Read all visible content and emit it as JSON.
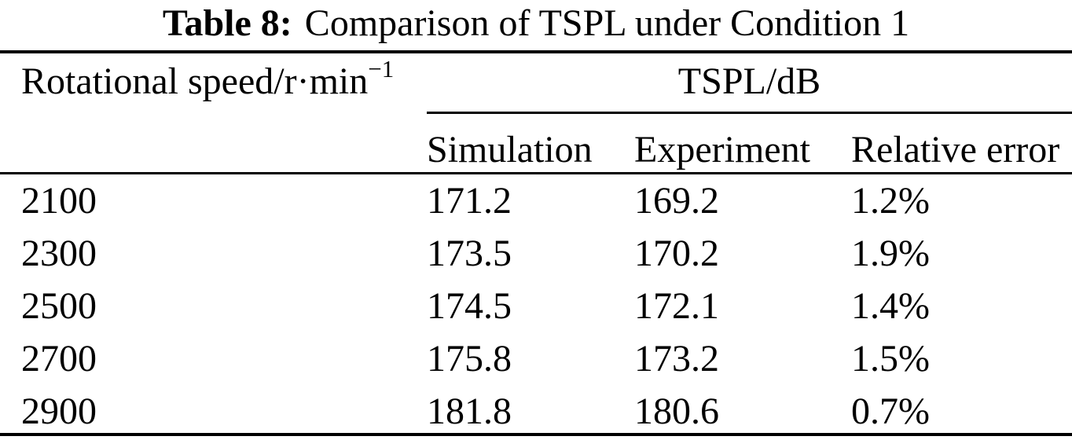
{
  "page": {
    "background_color": "#ffffff",
    "text_color": "#000000"
  },
  "caption": {
    "label": "Table 8:",
    "text": "Comparison of TSPL under Condition 1"
  },
  "table": {
    "col1_header": {
      "base": "Rotational speed/r·min",
      "superscript": "−1"
    },
    "group_header": "TSPL/dB",
    "sub_headers": [
      "Simulation",
      "Experiment",
      "Relative error"
    ],
    "rows": [
      {
        "speed": "2100",
        "simulation": "171.2",
        "experiment": "169.2",
        "relative_error": "1.2%"
      },
      {
        "speed": "2300",
        "simulation": "173.5",
        "experiment": "170.2",
        "relative_error": "1.9%"
      },
      {
        "speed": "2500",
        "simulation": "174.5",
        "experiment": "172.1",
        "relative_error": "1.4%"
      },
      {
        "speed": "2700",
        "simulation": "175.8",
        "experiment": "173.2",
        "relative_error": "1.5%"
      },
      {
        "speed": "2900",
        "simulation": "181.8",
        "experiment": "180.6",
        "relative_error": "0.7%"
      }
    ]
  }
}
